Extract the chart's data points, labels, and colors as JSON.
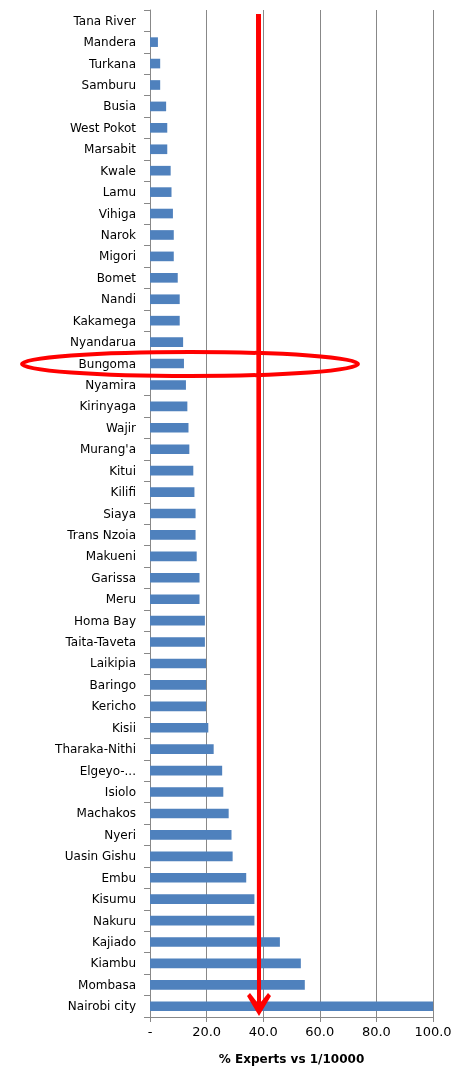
{
  "chart_data": {
    "type": "bar",
    "orientation": "horizontal",
    "xlabel": "% Experts vs 1/10000",
    "categories": [
      "Tana River",
      "Mandera",
      "Turkana",
      "Samburu",
      "Busia",
      "West Pokot",
      "Marsabit",
      "Kwale",
      "Lamu",
      "Vihiga",
      "Narok",
      "Migori",
      "Bomet",
      "Nandi",
      "Kakamega",
      "Nyandarua",
      "Bungoma",
      "Nyamira",
      "Kirinyaga",
      "Wajir",
      "Murang'a",
      "Kitui",
      "Kilifi",
      "Siaya",
      "Trans Nzoia",
      "Makueni",
      "Garissa",
      "Meru",
      "Homa Bay",
      "Taita-Taveta",
      "Laikipia",
      "Baringo",
      "Kericho",
      "Kisii",
      "Tharaka-Nithi",
      "Elgeyo-...",
      "Isiolo",
      "Machakos",
      "Nyeri",
      "Uasin Gishu",
      "Embu",
      "Kisumu",
      "Nakuru",
      "Kajiado",
      "Kiambu",
      "Mombasa",
      "Nairobi city"
    ],
    "values": [
      0,
      2.8,
      3.6,
      3.6,
      5.7,
      6.1,
      6.1,
      7.3,
      7.6,
      8.1,
      8.4,
      8.4,
      9.8,
      10.5,
      10.5,
      11.7,
      12.0,
      12.7,
      13.2,
      13.6,
      13.9,
      15.3,
      15.7,
      16.1,
      16.1,
      16.5,
      17.5,
      17.5,
      19.4,
      19.4,
      19.8,
      19.8,
      19.8,
      20.6,
      22.5,
      25.5,
      25.9,
      27.8,
      28.8,
      29.2,
      34.0,
      36.9,
      36.9,
      45.9,
      53.3,
      54.7,
      100
    ],
    "color": "#4f81bd",
    "xlim": [
      0,
      100
    ],
    "xticks": [
      {
        "value": 0,
        "label": "-"
      },
      {
        "value": 20,
        "label": "20.0"
      },
      {
        "value": 40,
        "label": "40.0"
      },
      {
        "value": 60,
        "label": "60.0"
      },
      {
        "value": 80,
        "label": "80.0"
      },
      {
        "value": 100,
        "label": "100.0"
      }
    ],
    "grid": "x"
  }
}
